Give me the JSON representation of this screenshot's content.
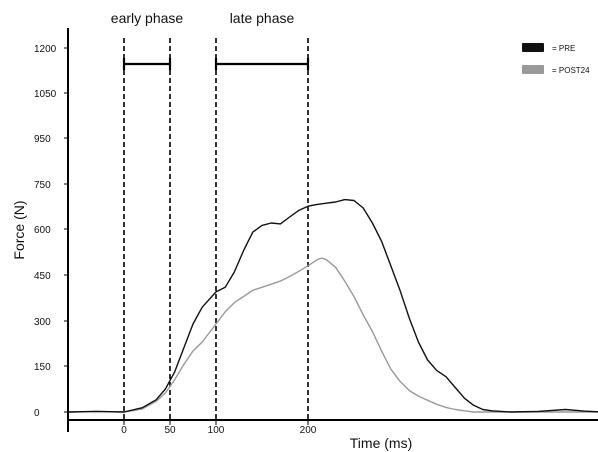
{
  "chart_data": {
    "type": "line",
    "xlabel": "Time (ms)",
    "ylabel": "Force (N)",
    "x_unit": "ms",
    "xlim": [
      -60,
      520
    ],
    "y_ticks": [
      0,
      150,
      300,
      450,
      600,
      750,
      950,
      1050,
      1200
    ],
    "x_ticks": [
      0,
      50,
      100,
      200
    ],
    "grid": false,
    "legend_position": "top-right",
    "legend": [
      {
        "label": "= PRE",
        "color": "#111111"
      },
      {
        "label": "= POST24",
        "color": "#999999"
      }
    ],
    "phases": [
      {
        "label": "early phase",
        "start": 0,
        "end": 50
      },
      {
        "label": "late phase",
        "start": 100,
        "end": 200
      }
    ],
    "series": [
      {
        "key": "PRE",
        "color": "#111111",
        "points": [
          [
            -60,
            0
          ],
          [
            -30,
            2
          ],
          [
            0,
            0
          ],
          [
            20,
            14
          ],
          [
            35,
            40
          ],
          [
            45,
            75
          ],
          [
            55,
            130
          ],
          [
            65,
            210
          ],
          [
            75,
            290
          ],
          [
            85,
            345
          ],
          [
            100,
            395
          ],
          [
            110,
            410
          ],
          [
            120,
            460
          ],
          [
            130,
            530
          ],
          [
            140,
            590
          ],
          [
            150,
            612
          ],
          [
            160,
            620
          ],
          [
            170,
            617
          ],
          [
            180,
            640
          ],
          [
            190,
            662
          ],
          [
            200,
            676
          ],
          [
            210,
            682
          ],
          [
            220,
            686
          ],
          [
            230,
            690
          ],
          [
            240,
            698
          ],
          [
            250,
            695
          ],
          [
            260,
            670
          ],
          [
            270,
            620
          ],
          [
            280,
            560
          ],
          [
            290,
            480
          ],
          [
            300,
            400
          ],
          [
            310,
            310
          ],
          [
            320,
            230
          ],
          [
            330,
            170
          ],
          [
            340,
            135
          ],
          [
            350,
            115
          ],
          [
            360,
            80
          ],
          [
            370,
            45
          ],
          [
            380,
            22
          ],
          [
            390,
            8
          ],
          [
            400,
            4
          ],
          [
            420,
            0
          ],
          [
            450,
            2
          ],
          [
            480,
            8
          ],
          [
            500,
            3
          ],
          [
            520,
            0
          ]
        ]
      },
      {
        "key": "POST24",
        "color": "#999999",
        "points": [
          [
            -60,
            0
          ],
          [
            -30,
            2
          ],
          [
            0,
            0
          ],
          [
            20,
            10
          ],
          [
            35,
            35
          ],
          [
            45,
            62
          ],
          [
            55,
            105
          ],
          [
            65,
            155
          ],
          [
            75,
            200
          ],
          [
            85,
            230
          ],
          [
            100,
            290
          ],
          [
            110,
            330
          ],
          [
            120,
            360
          ],
          [
            130,
            380
          ],
          [
            140,
            400
          ],
          [
            150,
            410
          ],
          [
            160,
            420
          ],
          [
            170,
            430
          ],
          [
            180,
            445
          ],
          [
            190,
            462
          ],
          [
            200,
            480
          ],
          [
            210,
            500
          ],
          [
            215,
            505
          ],
          [
            220,
            500
          ],
          [
            230,
            475
          ],
          [
            240,
            430
          ],
          [
            250,
            380
          ],
          [
            260,
            320
          ],
          [
            270,
            265
          ],
          [
            280,
            200
          ],
          [
            290,
            140
          ],
          [
            300,
            100
          ],
          [
            310,
            70
          ],
          [
            320,
            52
          ],
          [
            330,
            38
          ],
          [
            340,
            25
          ],
          [
            350,
            15
          ],
          [
            360,
            8
          ],
          [
            370,
            4
          ],
          [
            380,
            0
          ],
          [
            400,
            0
          ],
          [
            440,
            0
          ],
          [
            480,
            0
          ],
          [
            520,
            0
          ]
        ]
      }
    ]
  }
}
